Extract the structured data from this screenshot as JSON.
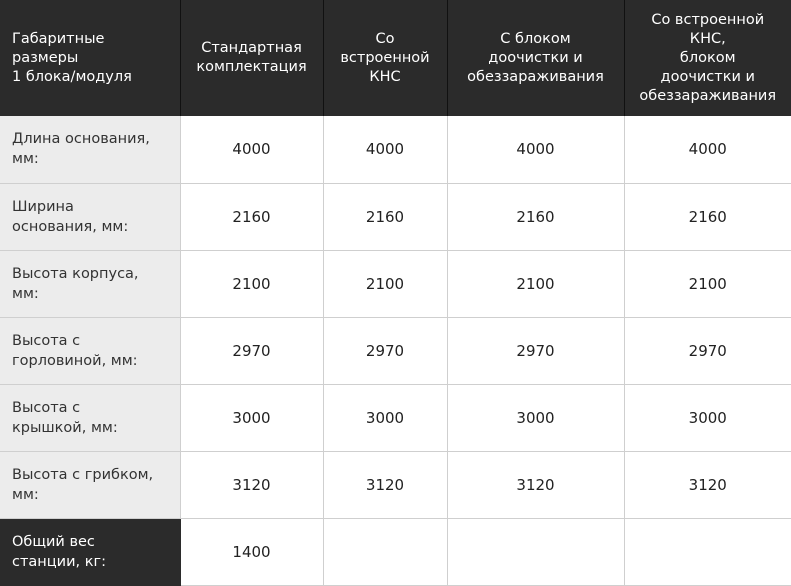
{
  "headers": [
    "Габаритные\nразмеры\n1 блока/модуля",
    "Стандартная\nкомплектация",
    "Со\nвстроенной\nКНС",
    "С блоком\nдоочистки и\nобеззараживания",
    "Со встроенной\nКНС,\nблоком\nдоочистки и\nобеззараживания"
  ],
  "rows": [
    {
      "label": "Длина основания,\nмм:",
      "values": [
        "4000",
        "4000",
        "4000",
        "4000"
      ]
    },
    {
      "label": "Ширина\nоснования, мм:",
      "values": [
        "2160",
        "2160",
        "2160",
        "2160"
      ]
    },
    {
      "label": "Высота корпуса,\nмм:",
      "values": [
        "2100",
        "2100",
        "2100",
        "2100"
      ]
    },
    {
      "label": "Высота с\nгорловиной, мм:",
      "values": [
        "2970",
        "2970",
        "2970",
        "2970"
      ]
    },
    {
      "label": "Высота с\nкрышкой, мм:",
      "values": [
        "3000",
        "3000",
        "3000",
        "3000"
      ]
    },
    {
      "label": "Высота с грибком,\nмм:",
      "values": [
        "3120",
        "3120",
        "3120",
        "3120"
      ]
    },
    {
      "label": "Общий вес\nстанции, кг:",
      "values": [
        "1400",
        "",
        "",
        ""
      ]
    }
  ],
  "colors": {
    "header_bg": "#2b2b2b",
    "label_bg": "#ececec",
    "border": "#cfcfcf"
  }
}
